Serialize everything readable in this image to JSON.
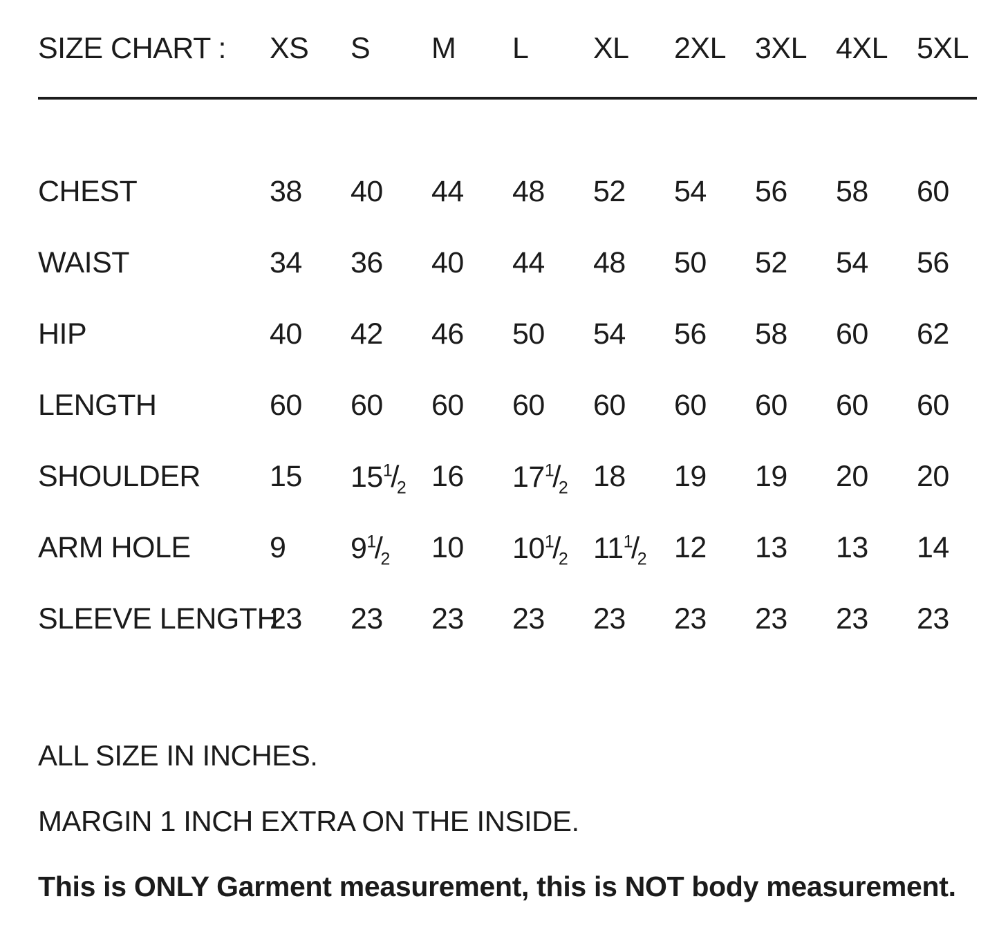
{
  "colors": {
    "background": "#ffffff",
    "text": "#1b1b1b",
    "divider": "#1c1c1c"
  },
  "chart_data": {
    "type": "table",
    "title": "SIZE CHART :",
    "columns": [
      "XS",
      "S",
      "M",
      "L",
      "XL",
      "2XL",
      "3XL",
      "4XL",
      "5XL"
    ],
    "rows": [
      {
        "label": "CHEST",
        "values": [
          "38",
          "40",
          "44",
          "48",
          "52",
          "54",
          "56",
          "58",
          "60"
        ]
      },
      {
        "label": "WAIST",
        "values": [
          "34",
          "36",
          "40",
          "44",
          "48",
          "50",
          "52",
          "54",
          "56"
        ]
      },
      {
        "label": "HIP",
        "values": [
          "40",
          "42",
          "46",
          "50",
          "54",
          "56",
          "58",
          "60",
          "62"
        ]
      },
      {
        "label": "LENGTH",
        "values": [
          "60",
          "60",
          "60",
          "60",
          "60",
          "60",
          "60",
          "60",
          "60"
        ]
      },
      {
        "label": "SHOULDER",
        "values": [
          "15",
          "15 1/2",
          "16",
          "17 1/2",
          "18",
          "19",
          "19",
          "20",
          "20"
        ]
      },
      {
        "label": "ARM HOLE",
        "values": [
          "9",
          "9 1/2",
          "10",
          "10 1/2",
          "11 1/2",
          "12",
          "13",
          "13",
          "14"
        ]
      },
      {
        "label": "SLEEVE LENGTH",
        "values": [
          "23",
          "23",
          "23",
          "23",
          "23",
          "23",
          "23",
          "23",
          "23"
        ]
      }
    ],
    "units_note": "ALL SIZE IN INCHES.",
    "margin_note": "MARGIN 1 INCH EXTRA ON THE INSIDE.",
    "disclaimer_note": "This is ONLY Garment measurement, this is NOT body measurement."
  }
}
